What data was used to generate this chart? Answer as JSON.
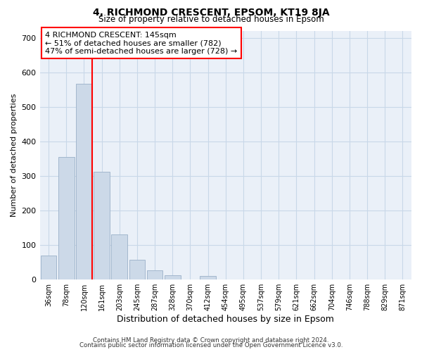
{
  "title": "4, RICHMOND CRESCENT, EPSOM, KT19 8JA",
  "subtitle": "Size of property relative to detached houses in Epsom",
  "bar_values": [
    70,
    355,
    568,
    313,
    130,
    58,
    27,
    13,
    0,
    10,
    0,
    0,
    0,
    0,
    0,
    0,
    0,
    0,
    0,
    0,
    0
  ],
  "x_labels": [
    "36sqm",
    "78sqm",
    "120sqm",
    "161sqm",
    "203sqm",
    "245sqm",
    "287sqm",
    "328sqm",
    "370sqm",
    "412sqm",
    "454sqm",
    "495sqm",
    "537sqm",
    "579sqm",
    "621sqm",
    "662sqm",
    "704sqm",
    "746sqm",
    "788sqm",
    "829sqm",
    "871sqm"
  ],
  "bar_color": "#ccd9e8",
  "bar_edge_color": "#9ab0c8",
  "ylabel": "Number of detached properties",
  "xlabel": "Distribution of detached houses by size in Epsom",
  "ylim": [
    0,
    720
  ],
  "yticks": [
    0,
    100,
    200,
    300,
    400,
    500,
    600,
    700
  ],
  "pct_smaller": 51,
  "n_smaller": 782,
  "pct_larger": 47,
  "n_larger": 728,
  "footer_line1": "Contains HM Land Registry data © Crown copyright and database right 2024.",
  "footer_line2": "Contains public sector information licensed under the Open Government Licence v3.0.",
  "grid_color": "#c8d8e8",
  "background_color": "#ffffff",
  "plot_bg_color": "#eaf0f8"
}
